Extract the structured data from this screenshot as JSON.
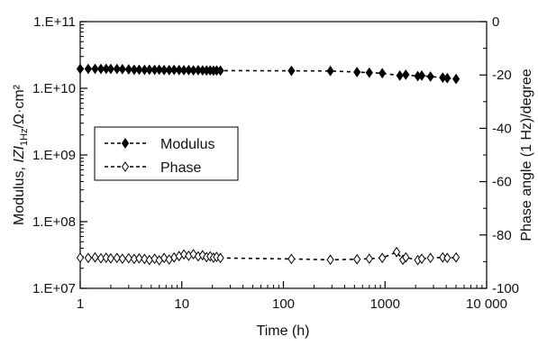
{
  "chart_data": {
    "type": "scatter",
    "title": "",
    "xlabel": "Time (h)",
    "ylabel_left_parts": [
      "Modulus, ",
      "IZI",
      "1Hz",
      "/Ω·cm²"
    ],
    "ylabel_right": "Phase angle (1 Hz)/degree",
    "x_scale": "log",
    "xlim": [
      1,
      10000
    ],
    "x_ticks": [
      1,
      10,
      100,
      1000,
      10000
    ],
    "x_tick_labels": [
      "1",
      "10",
      "100",
      "1000",
      "10 000"
    ],
    "y_left_scale": "log",
    "y_left_lim": [
      10000000,
      100000000000
    ],
    "y_left_ticks": [
      10000000,
      100000000,
      1000000000,
      10000000000,
      100000000000
    ],
    "y_left_tick_labels": [
      "1.E+07",
      "1.E+08",
      "1.E+09",
      "1.E+10",
      "1.E+11"
    ],
    "y_right_lim": [
      -100,
      0
    ],
    "y_right_ticks": [
      0,
      -20,
      -40,
      -60,
      -80,
      -100
    ],
    "y_right_tick_labels": [
      "0",
      "-20",
      "-40",
      "-60",
      "-80",
      "-100"
    ],
    "grid": false,
    "legend_position": "middle-left",
    "series": [
      {
        "name": "Modulus",
        "marker": "filled-diamond",
        "axis": "left",
        "color": "#000000",
        "points": [
          [
            1.0,
            19500000000.0
          ],
          [
            1.2,
            19500000000.0
          ],
          [
            1.4,
            19600000000.0
          ],
          [
            1.6,
            19500000000.0
          ],
          [
            1.8,
            19600000000.0
          ],
          [
            2.0,
            19500000000.0
          ],
          [
            2.3,
            19500000000.0
          ],
          [
            2.6,
            19400000000.0
          ],
          [
            3.0,
            19200000000.0
          ],
          [
            3.4,
            19000000000.0
          ],
          [
            3.8,
            19000000000.0
          ],
          [
            4.3,
            18900000000.0
          ],
          [
            4.8,
            19000000000.0
          ],
          [
            5.4,
            18900000000.0
          ],
          [
            6.0,
            19000000000.0
          ],
          [
            6.7,
            18800000000.0
          ],
          [
            7.5,
            18800000000.0
          ],
          [
            8.4,
            18900000000.0
          ],
          [
            9.4,
            18800000000.0
          ],
          [
            10.5,
            18700000000.0
          ],
          [
            11.7,
            18800000000.0
          ],
          [
            13.0,
            18600000000.0
          ],
          [
            14.5,
            18700000000.0
          ],
          [
            16.0,
            18600000000.0
          ],
          [
            17.5,
            18500000000.0
          ],
          [
            19.0,
            18600000000.0
          ],
          [
            20.5,
            18400000000.0
          ],
          [
            22.0,
            18500000000.0
          ],
          [
            24.0,
            18400000000.0
          ],
          [
            120,
            18300000000.0
          ],
          [
            290,
            18200000000.0
          ],
          [
            530,
            17500000000.0
          ],
          [
            700,
            17200000000.0
          ],
          [
            940,
            16800000000.0
          ],
          [
            1400,
            15500000000.0
          ],
          [
            1600,
            16000000000.0
          ],
          [
            2100,
            15200000000.0
          ],
          [
            2300,
            15500000000.0
          ],
          [
            2800,
            15000000000.0
          ],
          [
            3700,
            14500000000.0
          ],
          [
            4100,
            14200000000.0
          ],
          [
            5000,
            13800000000.0
          ]
        ]
      },
      {
        "name": "Phase",
        "marker": "open-diamond",
        "axis": "right",
        "color": "#000000",
        "points": [
          [
            1.0,
            -88.5
          ],
          [
            1.2,
            -88.6
          ],
          [
            1.4,
            -88.4
          ],
          [
            1.6,
            -88.7
          ],
          [
            1.8,
            -88.5
          ],
          [
            2.0,
            -88.8
          ],
          [
            2.3,
            -88.6
          ],
          [
            2.6,
            -88.9
          ],
          [
            3.0,
            -88.7
          ],
          [
            3.4,
            -89.0
          ],
          [
            3.8,
            -88.8
          ],
          [
            4.3,
            -89.0
          ],
          [
            4.8,
            -89.4
          ],
          [
            5.4,
            -88.9
          ],
          [
            6.0,
            -89.5
          ],
          [
            6.7,
            -88.6
          ],
          [
            7.5,
            -89.2
          ],
          [
            8.4,
            -88.4
          ],
          [
            9.4,
            -87.9
          ],
          [
            10.5,
            -87.3
          ],
          [
            11.7,
            -87.8
          ],
          [
            13.0,
            -87.2
          ],
          [
            14.5,
            -88.0
          ],
          [
            16.0,
            -87.6
          ],
          [
            17.5,
            -88.3
          ],
          [
            19.0,
            -88.0
          ],
          [
            20.5,
            -88.5
          ],
          [
            22.0,
            -88.2
          ],
          [
            24.0,
            -88.6
          ],
          [
            120,
            -89.0
          ],
          [
            290,
            -89.3
          ],
          [
            530,
            -89.1
          ],
          [
            700,
            -88.9
          ],
          [
            940,
            -88.6
          ],
          [
            1300,
            -86.4
          ],
          [
            1500,
            -89.3
          ],
          [
            1600,
            -88.4
          ],
          [
            2100,
            -89.4
          ],
          [
            2300,
            -88.9
          ],
          [
            2800,
            -88.6
          ],
          [
            3700,
            -88.4
          ],
          [
            4100,
            -88.6
          ],
          [
            5000,
            -88.4
          ]
        ]
      }
    ]
  }
}
